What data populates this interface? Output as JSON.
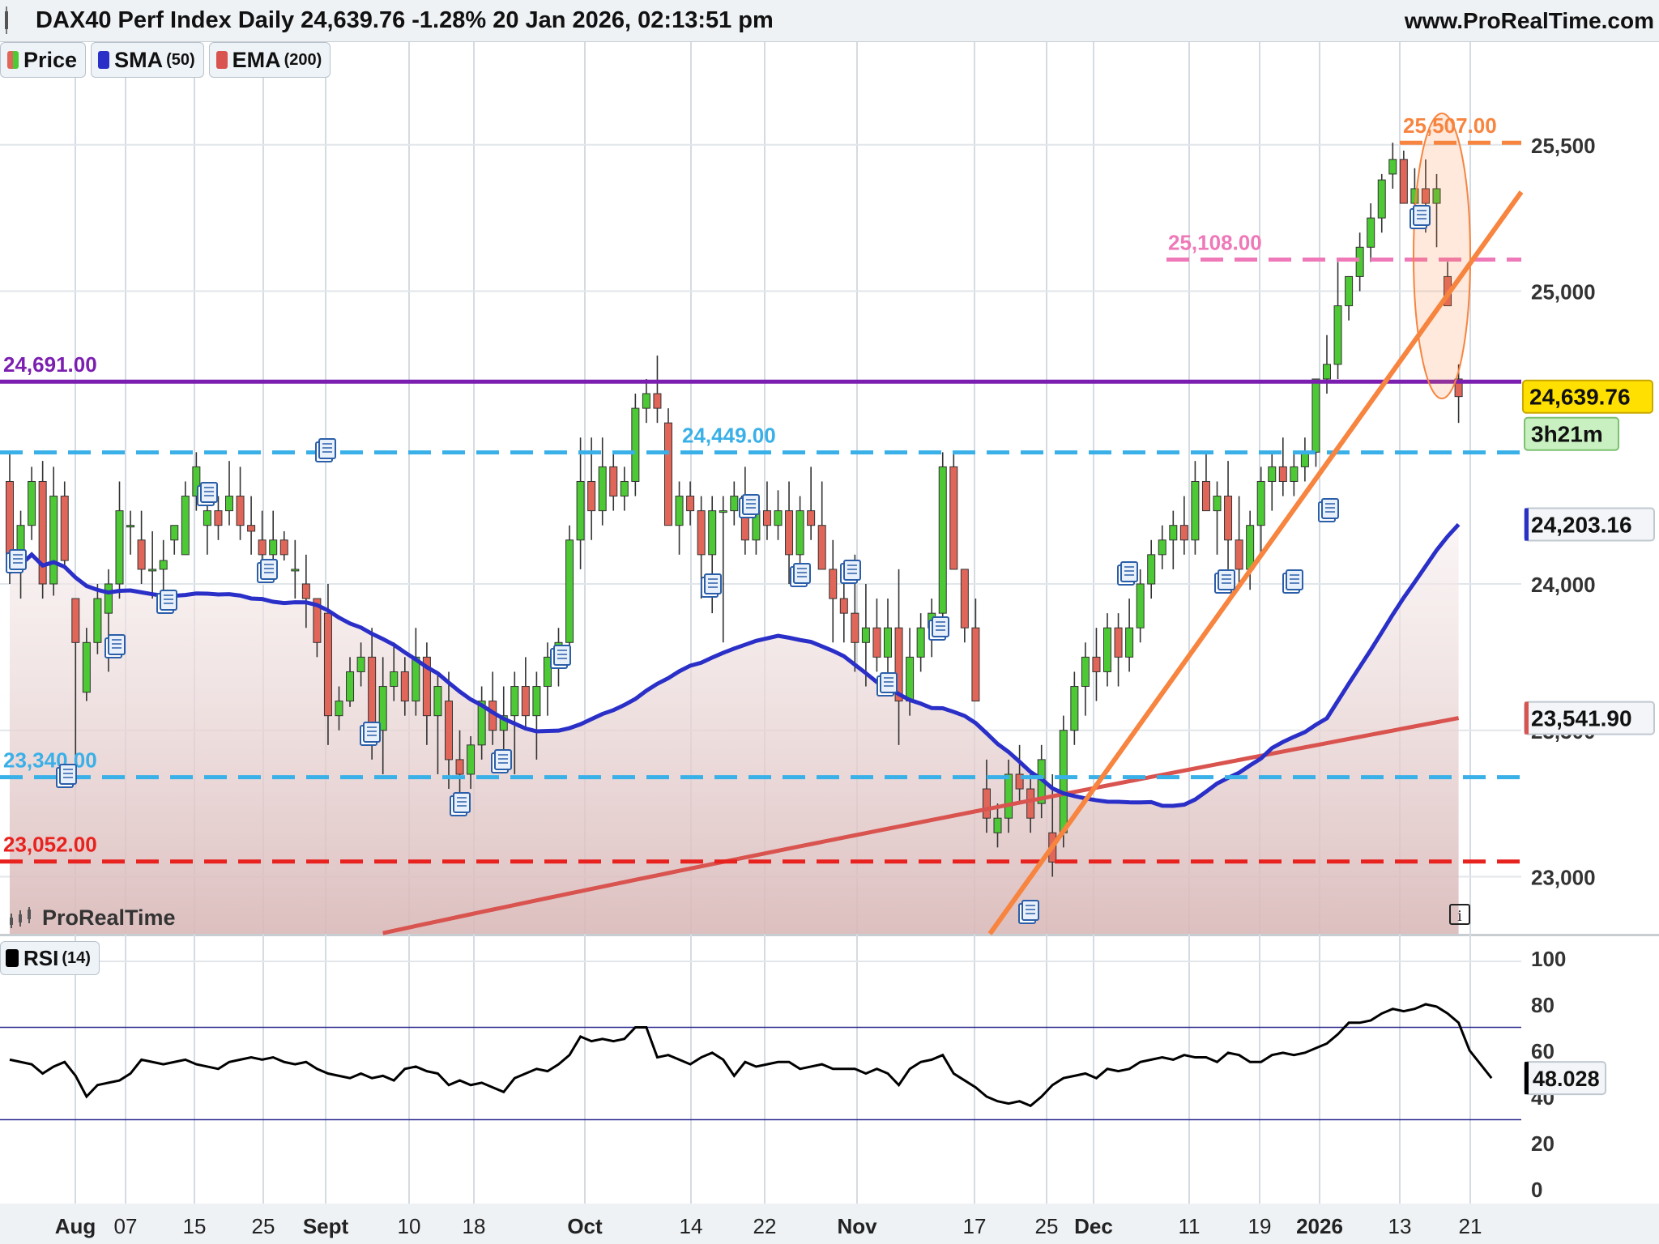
{
  "header": {
    "title": "DAX40 Perf Index Daily 24,639.76 -1.28% 20 Jan 2026, 02:13:51 pm",
    "site": "www.ProRealTime.com"
  },
  "legend": [
    {
      "label": "Price",
      "param": "",
      "color": "#22aa22"
    },
    {
      "label": "SMA",
      "param": "(50)",
      "color": "#1f2fd0"
    },
    {
      "label": "EMA",
      "param": "(200)",
      "color": "#d9534f"
    }
  ],
  "brand": "ProRealTime",
  "rsi_legend": {
    "label": "RSI",
    "param": "(14)"
  },
  "info_label": "i",
  "colors": {
    "up": "#4cc934",
    "down": "#e0665a",
    "sma": "#2a2fc8",
    "ema": "#d9534f",
    "trend": "#f7843f",
    "resistance_purple": "#7b1fb0",
    "support_blue": "#3ab0e8",
    "support_red": "#e8221e",
    "pink": "#ef78b8"
  },
  "chart_data": [
    {
      "type": "candlestick",
      "instrument": "DAX40 Perf Index",
      "timeframe": "Daily",
      "ylim": [
        22800,
        25700
      ],
      "y_ticks": [
        {
          "value": 25500,
          "label": "25,500"
        },
        {
          "value": 25000,
          "label": "25,000"
        },
        {
          "value": 24000,
          "label": "24,000"
        },
        {
          "value": 23500,
          "label": "23,500"
        },
        {
          "value": 23000,
          "label": "23,000"
        }
      ],
      "x_ticks": [
        {
          "label": "Aug",
          "bold": true
        },
        {
          "label": "07",
          "bold": false
        },
        {
          "label": "15",
          "bold": false
        },
        {
          "label": "25",
          "bold": false
        },
        {
          "label": "Sept",
          "bold": true
        },
        {
          "label": "10",
          "bold": false
        },
        {
          "label": "18",
          "bold": false
        },
        {
          "label": "Oct",
          "bold": true
        },
        {
          "label": "14",
          "bold": false
        },
        {
          "label": "22",
          "bold": false
        },
        {
          "label": "Nov",
          "bold": true
        },
        {
          "label": "17",
          "bold": false
        },
        {
          "label": "25",
          "bold": false
        },
        {
          "label": "Dec",
          "bold": true
        },
        {
          "label": "11",
          "bold": false
        },
        {
          "label": "19",
          "bold": false
        },
        {
          "label": "2026",
          "bold": true
        },
        {
          "label": "13",
          "bold": false
        },
        {
          "label": "21",
          "bold": false
        }
      ],
      "candles_ohlc": [
        [
          24350,
          24450,
          24000,
          24100
        ],
        [
          24100,
          24250,
          23950,
          24200
        ],
        [
          24200,
          24400,
          24150,
          24350
        ],
        [
          24350,
          24420,
          23950,
          24000
        ],
        [
          24000,
          24400,
          23960,
          24300
        ],
        [
          24300,
          24350,
          24050,
          24080
        ],
        [
          23950,
          23950,
          23360,
          23800
        ],
        [
          23630,
          23850,
          23600,
          23800
        ],
        [
          23800,
          24000,
          23760,
          23950
        ],
        [
          23900,
          24050,
          23700,
          24000
        ],
        [
          24000,
          24350,
          23950,
          24250
        ],
        [
          24200,
          24250,
          24100,
          24200
        ],
        [
          24150,
          24250,
          24000,
          24050
        ],
        [
          24050,
          24180,
          23950,
          24050
        ],
        [
          24050,
          24150,
          23950,
          24080
        ],
        [
          24150,
          24150,
          24100,
          24200
        ],
        [
          24100,
          24350,
          24100,
          24300
        ],
        [
          24300,
          24450,
          24250,
          24400
        ],
        [
          24200,
          24300,
          24100,
          24250
        ],
        [
          24250,
          24300,
          24150,
          24200
        ],
        [
          24250,
          24420,
          24200,
          24300
        ],
        [
          24300,
          24400,
          24150,
          24200
        ],
        [
          24200,
          24300,
          24100,
          24180
        ],
        [
          24150,
          24250,
          24050,
          24100
        ],
        [
          24100,
          24250,
          24050,
          24150
        ],
        [
          24150,
          24180,
          24080,
          24100
        ],
        [
          24050,
          24150,
          23950,
          24050
        ],
        [
          24000,
          24100,
          23850,
          23950
        ],
        [
          23950,
          23950,
          23750,
          23800
        ],
        [
          23900,
          24000,
          23450,
          23550
        ],
        [
          23550,
          23650,
          23500,
          23600
        ],
        [
          23600,
          23750,
          23580,
          23700
        ],
        [
          23700,
          23800,
          23650,
          23750
        ],
        [
          23750,
          23850,
          23400,
          23500
        ],
        [
          23500,
          23750,
          23350,
          23650
        ],
        [
          23650,
          23800,
          23600,
          23700
        ],
        [
          23700,
          23750,
          23550,
          23600
        ],
        [
          23600,
          23850,
          23550,
          23750
        ],
        [
          23750,
          23800,
          23450,
          23550
        ],
        [
          23550,
          23700,
          23350,
          23650
        ],
        [
          23600,
          23700,
          23300,
          23400
        ],
        [
          23400,
          23500,
          23250,
          23350
        ],
        [
          23350,
          23480,
          23300,
          23450
        ],
        [
          23450,
          23650,
          23400,
          23600
        ],
        [
          23600,
          23700,
          23450,
          23500
        ],
        [
          23500,
          23650,
          23400,
          23550
        ],
        [
          23550,
          23700,
          23350,
          23650
        ],
        [
          23650,
          23750,
          23500,
          23550
        ],
        [
          23550,
          23700,
          23400,
          23650
        ],
        [
          23650,
          23800,
          23550,
          23750
        ],
        [
          23750,
          23850,
          23650,
          23800
        ],
        [
          23800,
          24200,
          23780,
          24150
        ],
        [
          24150,
          24500,
          24050,
          24350
        ],
        [
          24350,
          24500,
          24150,
          24250
        ],
        [
          24250,
          24500,
          24200,
          24400
        ],
        [
          24400,
          24450,
          24250,
          24300
        ],
        [
          24300,
          24400,
          24250,
          24350
        ],
        [
          24350,
          24650,
          24300,
          24600
        ],
        [
          24600,
          24700,
          24550,
          24650
        ],
        [
          24650,
          24780,
          24550,
          24600
        ],
        [
          24550,
          24600,
          24200,
          24200
        ],
        [
          24200,
          24350,
          24100,
          24300
        ],
        [
          24300,
          24350,
          24200,
          24250
        ],
        [
          24250,
          24300,
          23950,
          24100
        ],
        [
          24100,
          24300,
          23900,
          24250
        ],
        [
          24250,
          24300,
          23800,
          24250
        ],
        [
          24250,
          24350,
          24200,
          24300
        ],
        [
          24300,
          24400,
          24100,
          24150
        ],
        [
          24150,
          24300,
          24100,
          24250
        ],
        [
          24250,
          24350,
          24150,
          24200
        ],
        [
          24200,
          24320,
          24150,
          24250
        ],
        [
          24250,
          24350,
          24000,
          24100
        ],
        [
          24100,
          24300,
          24050,
          24250
        ],
        [
          24250,
          24400,
          24150,
          24200
        ],
        [
          24200,
          24350,
          24050,
          24050
        ],
        [
          24050,
          24150,
          23800,
          23950
        ],
        [
          23950,
          24050,
          23800,
          23900
        ],
        [
          23900,
          24100,
          23700,
          23800
        ],
        [
          23800,
          24000,
          23650,
          23850
        ],
        [
          23850,
          23950,
          23700,
          23750
        ],
        [
          23750,
          23950,
          23650,
          23850
        ],
        [
          23850,
          24050,
          23450,
          23600
        ],
        [
          23600,
          23850,
          23550,
          23750
        ],
        [
          23750,
          23900,
          23700,
          23850
        ],
        [
          23850,
          23950,
          23750,
          23900
        ],
        [
          23900,
          24450,
          23850,
          24400
        ],
        [
          24400,
          24450,
          24050,
          24050
        ],
        [
          24050,
          24050,
          23800,
          23850
        ],
        [
          23850,
          23950,
          23600,
          23600
        ],
        [
          23300,
          23400,
          23150,
          23200
        ],
        [
          23150,
          23250,
          23100,
          23200
        ],
        [
          23200,
          23400,
          23150,
          23350
        ],
        [
          23350,
          23450,
          23250,
          23300
        ],
        [
          23300,
          23350,
          23150,
          23200
        ],
        [
          23250,
          23450,
          23200,
          23400
        ],
        [
          23150,
          23350,
          23000,
          23050
        ],
        [
          23150,
          23550,
          23100,
          23500
        ],
        [
          23500,
          23700,
          23450,
          23650
        ],
        [
          23650,
          23800,
          23550,
          23750
        ],
        [
          23750,
          23850,
          23600,
          23700
        ],
        [
          23700,
          23900,
          23650,
          23850
        ],
        [
          23850,
          23900,
          23650,
          23750
        ],
        [
          23750,
          23950,
          23700,
          23850
        ],
        [
          23850,
          24050,
          23800,
          24000
        ],
        [
          24000,
          24150,
          23950,
          24100
        ],
        [
          24100,
          24200,
          24050,
          24150
        ],
        [
          24150,
          24250,
          24050,
          24200
        ],
        [
          24200,
          24300,
          24100,
          24150
        ],
        [
          24150,
          24420,
          24100,
          24350
        ],
        [
          24350,
          24450,
          24250,
          24250
        ],
        [
          24250,
          24350,
          24100,
          24300
        ],
        [
          24300,
          24420,
          24050,
          24150
        ],
        [
          24150,
          24300,
          24000,
          24050
        ],
        [
          24050,
          24250,
          23980,
          24200
        ],
        [
          24200,
          24400,
          24100,
          24350
        ],
        [
          24350,
          24450,
          24250,
          24400
        ],
        [
          24400,
          24500,
          24300,
          24350
        ],
        [
          24350,
          24450,
          24300,
          24400
        ],
        [
          24400,
          24500,
          24350,
          24450
        ],
        [
          24450,
          24650,
          24400,
          24700
        ],
        [
          24700,
          24850,
          24650,
          24750
        ],
        [
          24750,
          25100,
          24700,
          24950
        ],
        [
          24950,
          25050,
          24900,
          25050
        ],
        [
          25050,
          25200,
          25000,
          25150
        ],
        [
          25150,
          25300,
          25100,
          25250
        ],
        [
          25250,
          25400,
          25200,
          25380
        ],
        [
          25400,
          25507,
          25350,
          25450
        ],
        [
          25450,
          25480,
          25300,
          25300
        ],
        [
          25300,
          25420,
          25250,
          25350
        ],
        [
          25350,
          25450,
          25200,
          25300
        ],
        [
          25300,
          25400,
          25150,
          25350
        ],
        [
          25050,
          25100,
          24950,
          24950
        ],
        [
          24700,
          24750,
          24550,
          24640
        ]
      ],
      "indicators": {
        "sma_50": {
          "last": 24203.16
        },
        "ema_200": {
          "last": 23541.9
        }
      },
      "levels": [
        {
          "label": "25,507.00",
          "value": 25507,
          "color": "#f7843f",
          "style": "dashed"
        },
        {
          "label": "25,108.00",
          "value": 25108,
          "color": "#ef78b8",
          "style": "dashed"
        },
        {
          "label": "24,691.00",
          "value": 24691,
          "color": "#7b1fb0",
          "style": "solid"
        },
        {
          "label": "24,449.00",
          "value": 24449,
          "color": "#3ab0e8",
          "style": "dashed"
        },
        {
          "label": "23,340.00",
          "value": 23340,
          "color": "#3ab0e8",
          "style": "dashed"
        },
        {
          "label": "23,052.00",
          "value": 23052,
          "color": "#e8221e",
          "style": "dashed"
        }
      ],
      "trendline": {
        "from": {
          "date": "18 Nov",
          "value": 22800
        },
        "to": {
          "date": "21 Jan",
          "value": 25200
        }
      },
      "price_badges": [
        {
          "label": "24,639.76",
          "value": 24639.76,
          "kind": "last"
        },
        {
          "label": "3h21m",
          "kind": "countdown"
        },
        {
          "label": "24,203.16",
          "value": 24203.16,
          "kind": "sma"
        },
        {
          "label": "23,541.90",
          "value": 23541.9,
          "kind": "ema"
        }
      ]
    },
    {
      "type": "line",
      "name": "RSI (14)",
      "ylim": [
        0,
        100
      ],
      "y_ticks": [
        {
          "value": 100,
          "label": "100"
        },
        {
          "value": 80,
          "label": "80"
        },
        {
          "value": 60,
          "label": "60"
        },
        {
          "value": 40,
          "label": "40"
        },
        {
          "value": 20,
          "label": "20"
        },
        {
          "value": 0,
          "label": "0"
        }
      ],
      "bands": [
        70,
        30
      ],
      "last": {
        "label": "48.028",
        "value": 48.028
      },
      "values": [
        56,
        55,
        54,
        50,
        53,
        55,
        49,
        40,
        45,
        46,
        47,
        50,
        56,
        55,
        54,
        55,
        56,
        54,
        53,
        52,
        55,
        56,
        57,
        56,
        57,
        55,
        54,
        55,
        52,
        50,
        49,
        48,
        50,
        48,
        49,
        47,
        52,
        53,
        51,
        50,
        45,
        47,
        45,
        46,
        44,
        42,
        48,
        50,
        52,
        51,
        54,
        58,
        66,
        64,
        65,
        64,
        65,
        70,
        70,
        57,
        58,
        56,
        54,
        57,
        59,
        56,
        49,
        55,
        53,
        54,
        55,
        55,
        52,
        53,
        54,
        52,
        52,
        52,
        50,
        52,
        50,
        45,
        52,
        55,
        56,
        58,
        50,
        47,
        44,
        40,
        38,
        37,
        38,
        36,
        40,
        45,
        48,
        49,
        50,
        48,
        52,
        51,
        52,
        55,
        56,
        57,
        56,
        58,
        57,
        57,
        55,
        59,
        58,
        55,
        55,
        58,
        59,
        58,
        59,
        61,
        63,
        67,
        72,
        72,
        73,
        76,
        78,
        77,
        78,
        80,
        79,
        76,
        72,
        60,
        54,
        48
      ]
    }
  ]
}
